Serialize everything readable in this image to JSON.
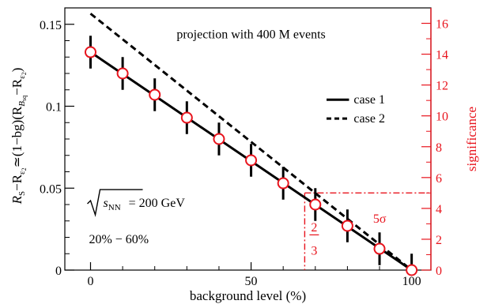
{
  "chart_data": {
    "type": "line",
    "title": "projection with 400 M events",
    "xlabel": "background level (%)",
    "ylabel": {
      "base": "R",
      "s1": "S",
      "m1": "−R",
      "s2": "ε",
      "s2b": "2",
      "m2": "≃(1−bg)(R",
      "s3": "B",
      "s3b": "sq",
      "m3": "−R",
      "s4": "ε",
      "s4b": "2",
      "end": ")"
    },
    "y2label": "significance",
    "xlim": [
      -8,
      106
    ],
    "ylim": [
      0,
      0.16
    ],
    "y2lim": [
      0,
      17
    ],
    "x_ticks": [
      0,
      50,
      100
    ],
    "x_ticklabels": [
      "0",
      "50",
      "100"
    ],
    "y_ticks": [
      0,
      0.05,
      0.1,
      0.15
    ],
    "y_ticklabels": [
      "0",
      "0.05",
      "0.1",
      "0.15"
    ],
    "y2_ticks": [
      0,
      2,
      4,
      6,
      8,
      10,
      12,
      14,
      16
    ],
    "y2_ticklabels": [
      "0",
      "2",
      "4",
      "6",
      "8",
      "10",
      "12",
      "14",
      "16"
    ],
    "x": [
      0,
      10,
      20,
      30,
      40,
      50,
      60,
      70,
      80,
      90,
      100
    ],
    "series": [
      {
        "name": "case 1",
        "line": [
          [
            0,
            0.133
          ],
          [
            100,
            0
          ]
        ],
        "points": [
          0.133,
          0.12,
          0.107,
          0.093,
          0.08,
          0.067,
          0.053,
          0.04,
          0.027,
          0.013,
          0.0
        ],
        "err": 0.01,
        "color": "#000000",
        "marker_color": "#e8141d"
      },
      {
        "name": "case 2",
        "line": [
          [
            0,
            0.1565
          ],
          [
            100,
            0
          ]
        ],
        "dash": true,
        "color": "#000000"
      }
    ],
    "threshold": {
      "significance": 5,
      "label": "5σ",
      "x": 66.7,
      "x_label_num": "2",
      "x_label_den": "3",
      "color": "#e8141d"
    },
    "annotations": {
      "energy_sym": "s",
      "energy_sub": "NN",
      "energy_val": "= 200 GeV",
      "centrality": "20% − 60%"
    },
    "legend_placement": "right",
    "grid": false
  }
}
